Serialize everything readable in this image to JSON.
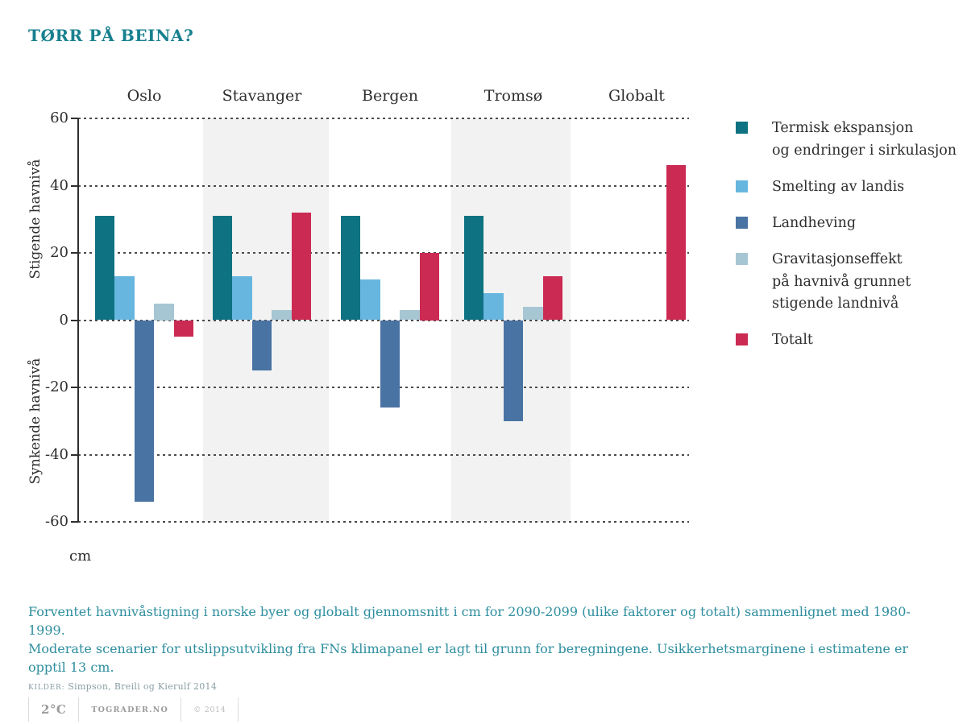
{
  "title": "TØRR PÅ BEINA?",
  "chart_data": {
    "type": "bar",
    "categories": [
      "Oslo",
      "Stavanger",
      "Bergen",
      "Tromsø",
      "Globalt"
    ],
    "series": [
      {
        "name": "Termisk ekspansjon og endringer i sirkulasjon",
        "color": "#0E7282",
        "values": [
          31,
          31,
          31,
          31,
          null
        ]
      },
      {
        "name": "Smelting av landis",
        "color": "#67B6DF",
        "values": [
          13,
          13,
          12,
          8,
          null
        ]
      },
      {
        "name": "Landheving",
        "color": "#4973A3",
        "values": [
          -54,
          -15,
          -26,
          -30,
          null
        ]
      },
      {
        "name": "Gravitasjonseffekt på havnivå grunnet stigende landnivå",
        "color": "#A7C6D4",
        "values": [
          5,
          3,
          3,
          4,
          null
        ]
      },
      {
        "name": "Totalt",
        "color": "#CB2A52",
        "values": [
          -5,
          32,
          20,
          13,
          46
        ]
      }
    ],
    "yticks": [
      60,
      40,
      20,
      0,
      -20,
      -40,
      -60
    ],
    "ylim": [
      -60,
      60
    ],
    "ylabel_top": "Stigende havnivå",
    "ylabel_bottom": "Synkende havnivå",
    "unit_label": "cm",
    "grid": "horizontal dashed",
    "shaded_categories": [
      "Stavanger",
      "Tromsø"
    ],
    "legend_position": "right"
  },
  "legend": {
    "items": [
      {
        "color": "#0E7282",
        "lines": [
          "Termisk ekspansjon",
          "og endringer i sirkulasjon"
        ]
      },
      {
        "color": "#67B6DF",
        "lines": [
          "Smelting av landis"
        ]
      },
      {
        "color": "#4973A3",
        "lines": [
          "Landheving"
        ]
      },
      {
        "color": "#A7C6D4",
        "lines": [
          "Gravitasjonseffekt",
          "på havnivå grunnet",
          "stigende landnivå"
        ]
      },
      {
        "color": "#CB2A52",
        "lines": [
          "Totalt"
        ]
      }
    ]
  },
  "caption": {
    "line1": "Forventet havnivåstigning i norske byer og globalt gjennomsnitt i cm for 2090-2099 (ulike faktorer og totalt) sammenlignet med 1980-1999.",
    "line2": "Moderate scenarier for utslippsutvikling fra FNs klimapanel er lagt til grunn for beregningene. Usikkerhetsmarginene i estimatene er opptil 13 cm.",
    "source_label": "KILDER:",
    "source_text": "Simpson, Breili og Kierulf 2014"
  },
  "footer": {
    "logo": "2°C",
    "site": "TOGRADER.NO",
    "copyright": "© 2014"
  }
}
